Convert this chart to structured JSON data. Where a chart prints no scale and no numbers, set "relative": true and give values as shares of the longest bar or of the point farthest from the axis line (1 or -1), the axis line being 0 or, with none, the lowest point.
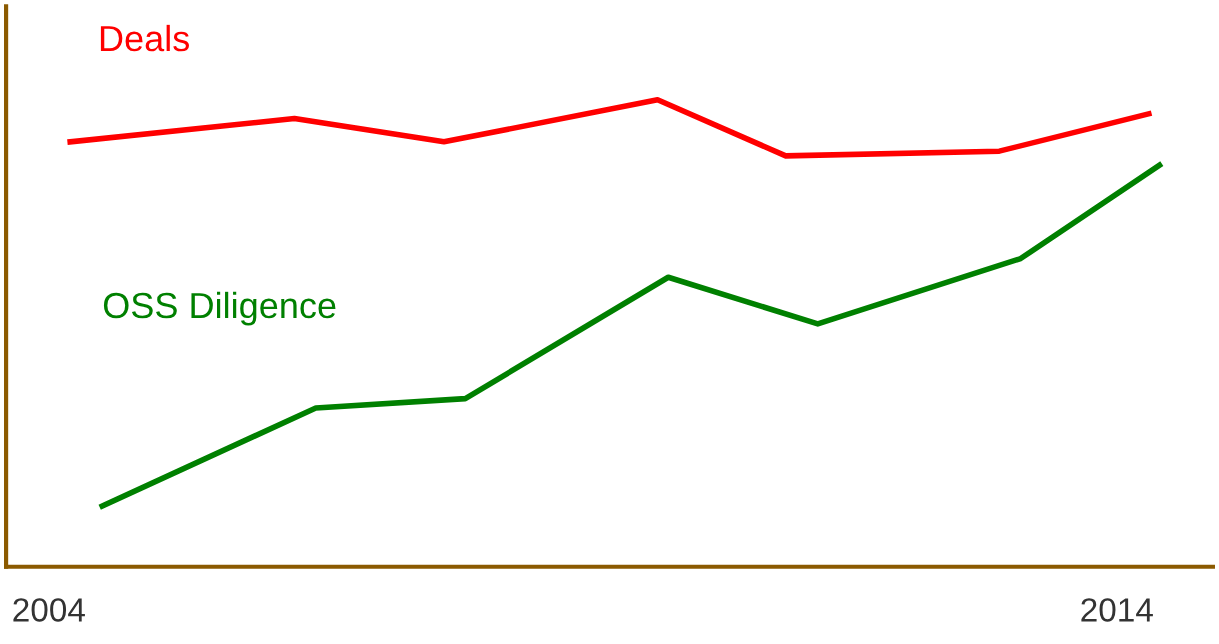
{
  "chart_data": {
    "type": "line",
    "relative": true,
    "xlim": [
      2003.6,
      2014.9
    ],
    "xticks": [
      2004,
      2014
    ],
    "grid": false,
    "legend": false,
    "marker": "none",
    "line_style": "solid",
    "series": [
      {
        "name": "Deals",
        "color": "#ff0000",
        "x": [
          2004.2,
          2006.3,
          2007.7,
          2009.7,
          2010.9,
          2012.9,
          2014.3
        ],
        "values": [
          0.91,
          0.96,
          0.91,
          1.0,
          0.88,
          0.89,
          0.97
        ]
      },
      {
        "name": "OSS Diligence",
        "color": "#008000",
        "x": [
          2004.5,
          2006.5,
          2007.9,
          2009.8,
          2011.2,
          2013.1,
          2014.4
        ],
        "values": [
          0.13,
          0.34,
          0.36,
          0.62,
          0.52,
          0.66,
          0.86
        ]
      }
    ]
  }
}
